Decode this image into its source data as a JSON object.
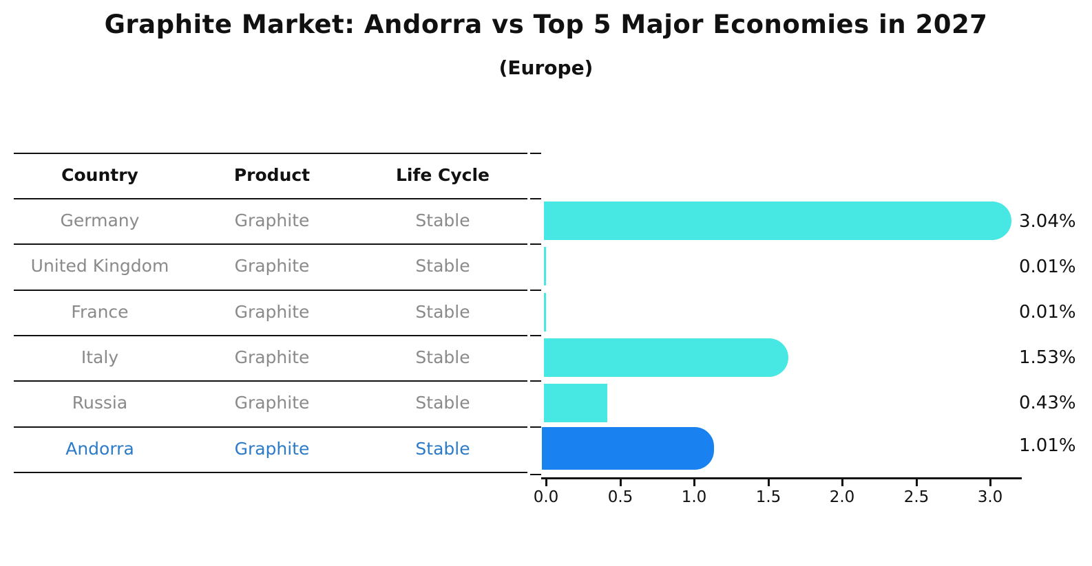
{
  "title": "Graphite Market: Andorra vs Top 5 Major Economies in 2027",
  "subtitle": "(Europe)",
  "table": {
    "headers": {
      "country": "Country",
      "product": "Product",
      "life_cycle": "Life Cycle"
    },
    "rows": [
      {
        "country": "Germany",
        "product": "Graphite",
        "life_cycle": "Stable",
        "highlight": false
      },
      {
        "country": "United Kingdom",
        "product": "Graphite",
        "life_cycle": "Stable",
        "highlight": false
      },
      {
        "country": "France",
        "product": "Graphite",
        "life_cycle": "Stable",
        "highlight": false
      },
      {
        "country": "Italy",
        "product": "Graphite",
        "life_cycle": "Stable",
        "highlight": false
      },
      {
        "country": "Russia",
        "product": "Graphite",
        "life_cycle": "Stable",
        "highlight": false
      },
      {
        "country": "Andorra",
        "product": "Graphite",
        "life_cycle": "Stable",
        "highlight": true
      }
    ]
  },
  "chart_data": {
    "type": "bar",
    "orientation": "horizontal",
    "title": "Graphite Market: Andorra vs Top 5 Major Economies in 2027 (Europe)",
    "categories": [
      "Germany",
      "United Kingdom",
      "France",
      "Italy",
      "Russia",
      "Andorra"
    ],
    "values": [
      3.04,
      0.01,
      0.01,
      1.53,
      0.43,
      1.01
    ],
    "value_labels": [
      "3.04%",
      "0.01%",
      "0.01%",
      "1.53%",
      "0.43%",
      "1.01%"
    ],
    "x_ticks": [
      "0.0",
      "0.5",
      "1.0",
      "1.5",
      "2.0",
      "2.5",
      "3.0"
    ],
    "xlim": [
      0,
      3.23
    ],
    "grid": false,
    "legend": "none",
    "highlight_category": "Andorra",
    "colors": {
      "default_bar": "#47E8E4",
      "highlight_bar": "#1A82F0",
      "highlight_text": "#2B7BC9",
      "row_text": "#8a8a8a",
      "header_text": "#111111",
      "value_label_text": "#111111",
      "axis": "#111111",
      "background": "#ffffff"
    }
  }
}
